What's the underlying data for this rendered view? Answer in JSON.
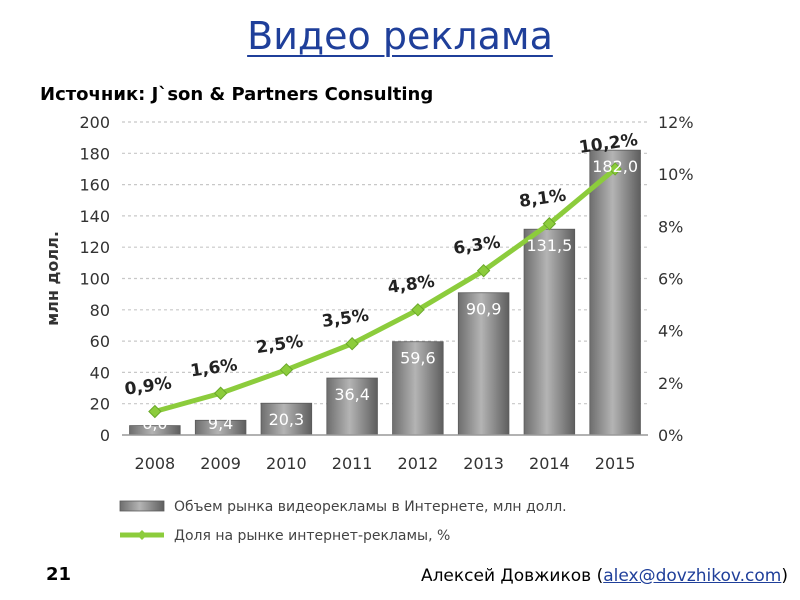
{
  "slide": {
    "title": "Видео реклама",
    "source": "Источник: J`son & Partners Consulting",
    "number": "21",
    "author": "Алексей Довжиков",
    "email": "alex@dovzhikov.com"
  },
  "colors": {
    "title": "#1f3f9a",
    "bars": "#8a8a8a",
    "line": "#8ccc3c",
    "link": "#1f3f9a"
  },
  "chart_data": {
    "type": "bar",
    "categories": [
      "2008",
      "2009",
      "2010",
      "2011",
      "2012",
      "2013",
      "2014",
      "2015"
    ],
    "ylabel": "млн долл.",
    "ylim": [
      0,
      200
    ],
    "yticks": [
      "0",
      "20",
      "40",
      "60",
      "80",
      "100",
      "120",
      "140",
      "160",
      "180",
      "200"
    ],
    "y2lim": [
      0,
      12
    ],
    "y2ticks": [
      "0%",
      "2%",
      "4%",
      "6%",
      "8%",
      "10%",
      "12%"
    ],
    "grid": true,
    "legend_position": "bottom",
    "series": [
      {
        "name": "Объем рынка видеорекламы в Интернете, млн долл.",
        "type": "bar",
        "axis": "left",
        "values": [
          6.0,
          9.4,
          20.3,
          36.4,
          59.6,
          90.9,
          131.5,
          182.0
        ],
        "labels": [
          "6,0",
          "9,4",
          "20,3",
          "36,4",
          "59,6",
          "90,9",
          "131,5",
          "182,0"
        ]
      },
      {
        "name": "Доля на рынке интернет-рекламы, %",
        "type": "line",
        "axis": "right",
        "values": [
          0.9,
          1.6,
          2.5,
          3.5,
          4.8,
          6.3,
          8.1,
          10.2
        ],
        "labels": [
          "0,9%",
          "1,6%",
          "2,5%",
          "3,5%",
          "4,8%",
          "6,3%",
          "8,1%",
          "10,2%"
        ]
      }
    ]
  }
}
